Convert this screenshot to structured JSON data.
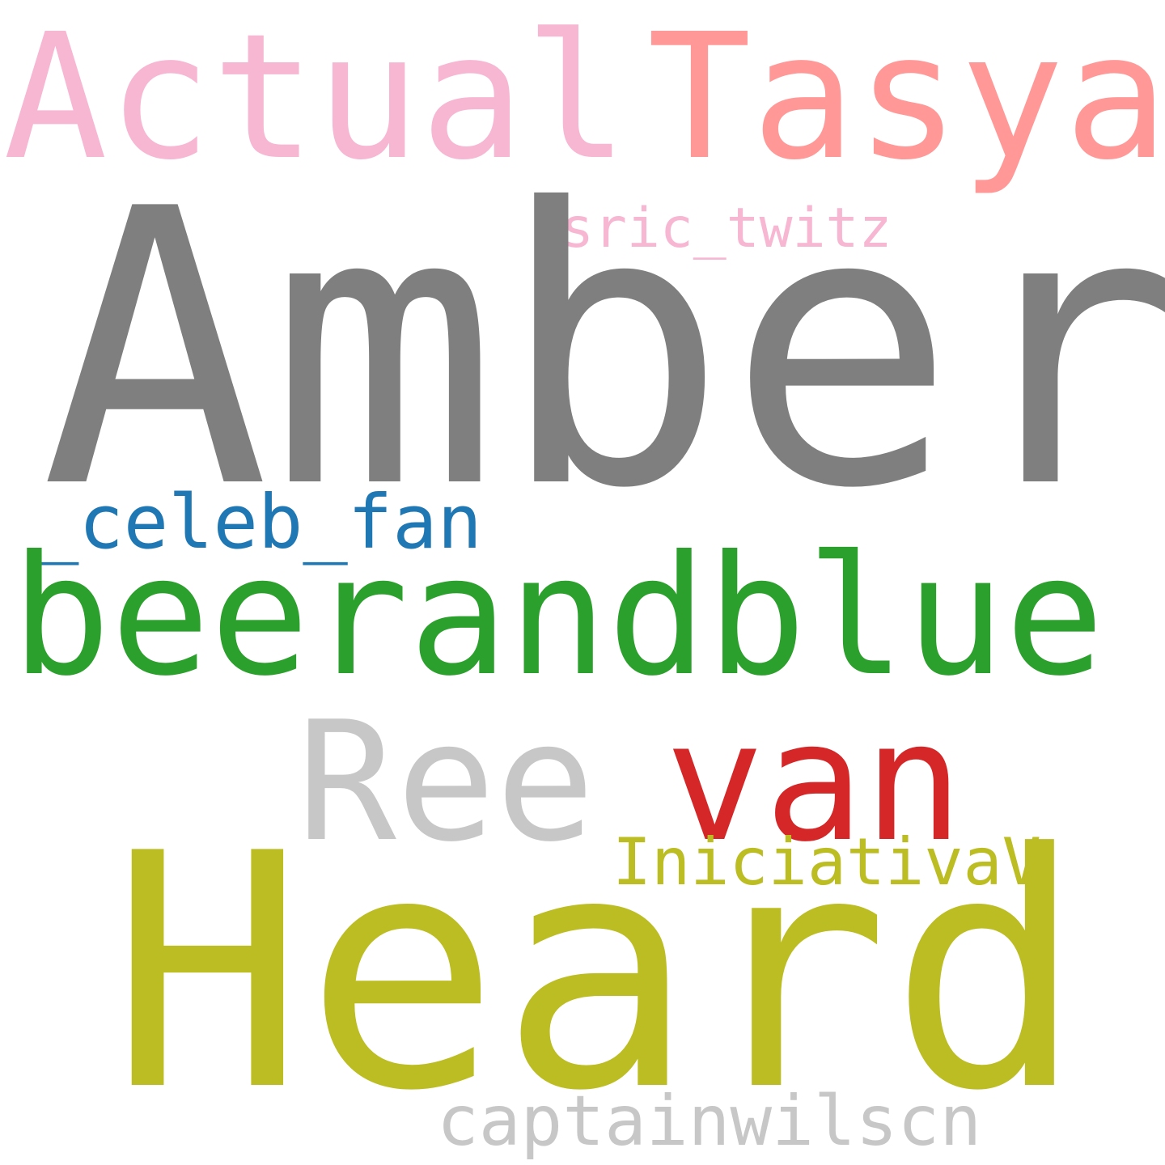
{
  "cloud": {
    "background": "#ffffff",
    "words": [
      {
        "id": "actual",
        "text": "Actual",
        "color": "#f7b6d2"
      },
      {
        "id": "tasya",
        "text": "Tasya",
        "color": "#ff9896"
      },
      {
        "id": "sric",
        "text": "sric_twitz",
        "color": "#f7b6d2"
      },
      {
        "id": "amber",
        "text": "Amber",
        "color": "#7f7f7f"
      },
      {
        "id": "celeb",
        "text": "_celeb_fan",
        "color": "#1f77b4"
      },
      {
        "id": "beerandblue",
        "text": "beerandblue",
        "color": "#2ca02c"
      },
      {
        "id": "ree",
        "text": "Ree",
        "color": "#c7c7c7"
      },
      {
        "id": "van",
        "text": "van",
        "color": "#d62728"
      },
      {
        "id": "iniciativa",
        "text": "IniciativaV",
        "color": "#bcbd22"
      },
      {
        "id": "heard",
        "text": "Heard",
        "color": "#bcbd22"
      },
      {
        "id": "captain",
        "text": "captainwilscn",
        "color": "#c7c7c7"
      }
    ]
  }
}
